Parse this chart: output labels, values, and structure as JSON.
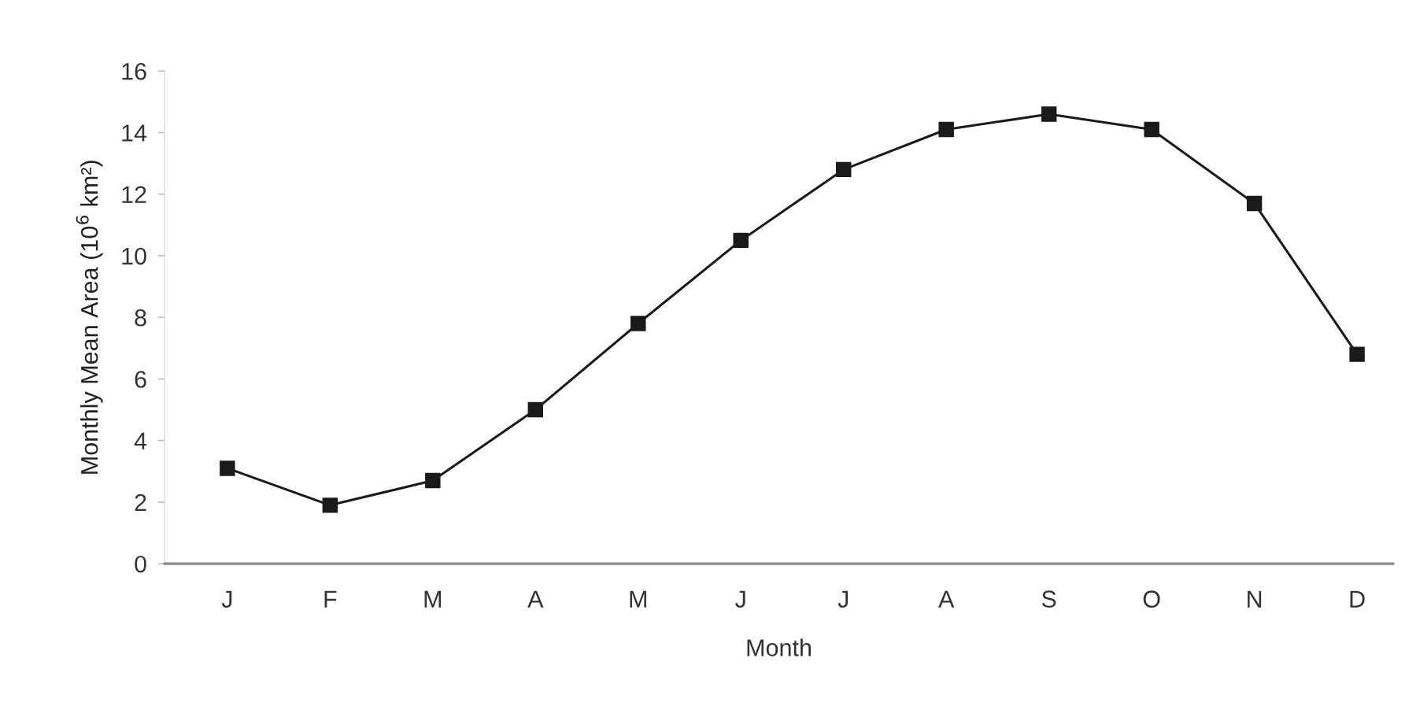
{
  "chart_data": {
    "type": "line",
    "xlabel": "Month",
    "ylabel": "Monthly Mean Area (10$^{6}$ km²)",
    "categories": [
      "J",
      "F",
      "M",
      "A",
      "M",
      "J",
      "J",
      "A",
      "S",
      "O",
      "N",
      "D"
    ],
    "values": [
      3.1,
      1.9,
      2.7,
      5.0,
      7.8,
      10.5,
      12.8,
      14.1,
      14.6,
      14.1,
      11.7,
      6.8
    ],
    "color": "#1a1a1a",
    "marker": "square",
    "line_style": "solid",
    "ylim": [
      0,
      16
    ],
    "yticks": [
      0,
      2,
      4,
      6,
      8,
      10,
      12,
      14,
      16
    ]
  }
}
